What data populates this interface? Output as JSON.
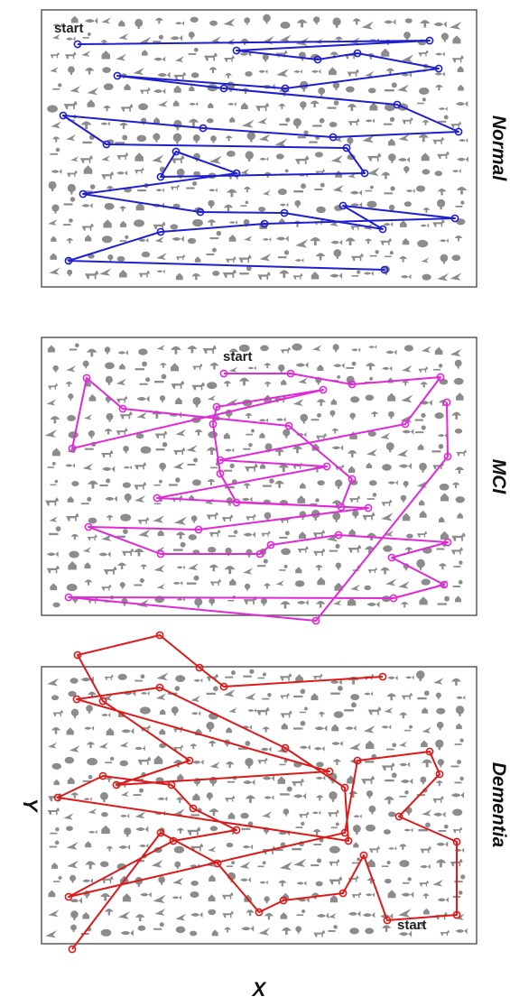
{
  "start_label": "start",
  "axis_x_label": "X",
  "axis_y_label": "Y",
  "colors": {
    "icons": "#8c8c8c",
    "frame": "#5a5a5a"
  },
  "panels": [
    {
      "key": "normal",
      "group": "Normal",
      "color": "#1f1fd0",
      "start": [
        86,
        49
      ],
      "path": [
        [
          86,
          49
        ],
        [
          476,
          45
        ],
        [
          262,
          56
        ],
        [
          352,
          66
        ],
        [
          396,
          59
        ],
        [
          486,
          76
        ],
        [
          316,
          98
        ],
        [
          130,
          84
        ],
        [
          248,
          98
        ],
        [
          440,
          116
        ],
        [
          508,
          146
        ],
        [
          369,
          152
        ],
        [
          225,
          142
        ],
        [
          70,
          128
        ],
        [
          118,
          160
        ],
        [
          384,
          164
        ],
        [
          404,
          192
        ],
        [
          178,
          196
        ],
        [
          195,
          168
        ],
        [
          262,
          192
        ],
        [
          92,
          215
        ],
        [
          222,
          235
        ],
        [
          315,
          236
        ],
        [
          424,
          254
        ],
        [
          380,
          228
        ],
        [
          504,
          242
        ],
        [
          293,
          248
        ],
        [
          178,
          257
        ],
        [
          76,
          289
        ],
        [
          426,
          299
        ]
      ]
    },
    {
      "key": "mci",
      "group": "MCI",
      "color": "#e02ad8",
      "start": [
        248,
        414
      ],
      "path": [
        [
          248,
          414
        ],
        [
          322,
          414
        ],
        [
          390,
          426
        ],
        [
          488,
          418
        ],
        [
          449,
          470
        ],
        [
          244,
          510
        ],
        [
          362,
          517
        ],
        [
          174,
          552
        ],
        [
          378,
          562
        ],
        [
          390,
          531
        ],
        [
          320,
          472
        ],
        [
          136,
          453
        ],
        [
          96,
          419
        ],
        [
          80,
          497
        ],
        [
          358,
          432
        ],
        [
          240,
          451
        ],
        [
          236,
          470
        ],
        [
          244,
          525
        ],
        [
          262,
          557
        ],
        [
          408,
          563
        ],
        [
          220,
          587
        ],
        [
          98,
          584
        ],
        [
          178,
          614
        ],
        [
          288,
          614
        ],
        [
          300,
          604
        ],
        [
          375,
          593
        ],
        [
          496,
          601
        ],
        [
          434,
          618
        ],
        [
          492,
          648
        ],
        [
          436,
          663
        ],
        [
          76,
          662
        ],
        [
          350,
          688
        ],
        [
          496,
          506
        ],
        [
          495,
          446
        ]
      ]
    },
    {
      "key": "dementia",
      "group": "Dementia",
      "color": "#dc1a1a",
      "start": [
        424,
        750
      ],
      "path": [
        [
          424,
          750
        ],
        [
          248,
          761
        ],
        [
          221,
          740
        ],
        [
          177,
          704
        ],
        [
          86,
          726
        ],
        [
          114,
          777
        ],
        [
          210,
          843
        ],
        [
          129,
          870
        ],
        [
          365,
          855
        ],
        [
          85,
          775
        ],
        [
          177,
          762
        ],
        [
          316,
          829
        ],
        [
          382,
          873
        ],
        [
          386,
          932
        ],
        [
          64,
          884
        ],
        [
          114,
          860
        ],
        [
          190,
          870
        ],
        [
          214,
          896
        ],
        [
          262,
          920
        ],
        [
          192,
          932
        ],
        [
          76,
          994
        ],
        [
          382,
          923
        ],
        [
          396,
          843
        ],
        [
          476,
          833
        ],
        [
          487,
          858
        ],
        [
          442,
          905
        ],
        [
          506,
          933
        ],
        [
          506,
          1014
        ],
        [
          429,
          1020
        ],
        [
          403,
          948
        ],
        [
          380,
          990
        ],
        [
          314,
          998
        ],
        [
          287,
          1011
        ],
        [
          241,
          957
        ],
        [
          178,
          923
        ],
        [
          80,
          1052
        ]
      ]
    }
  ]
}
